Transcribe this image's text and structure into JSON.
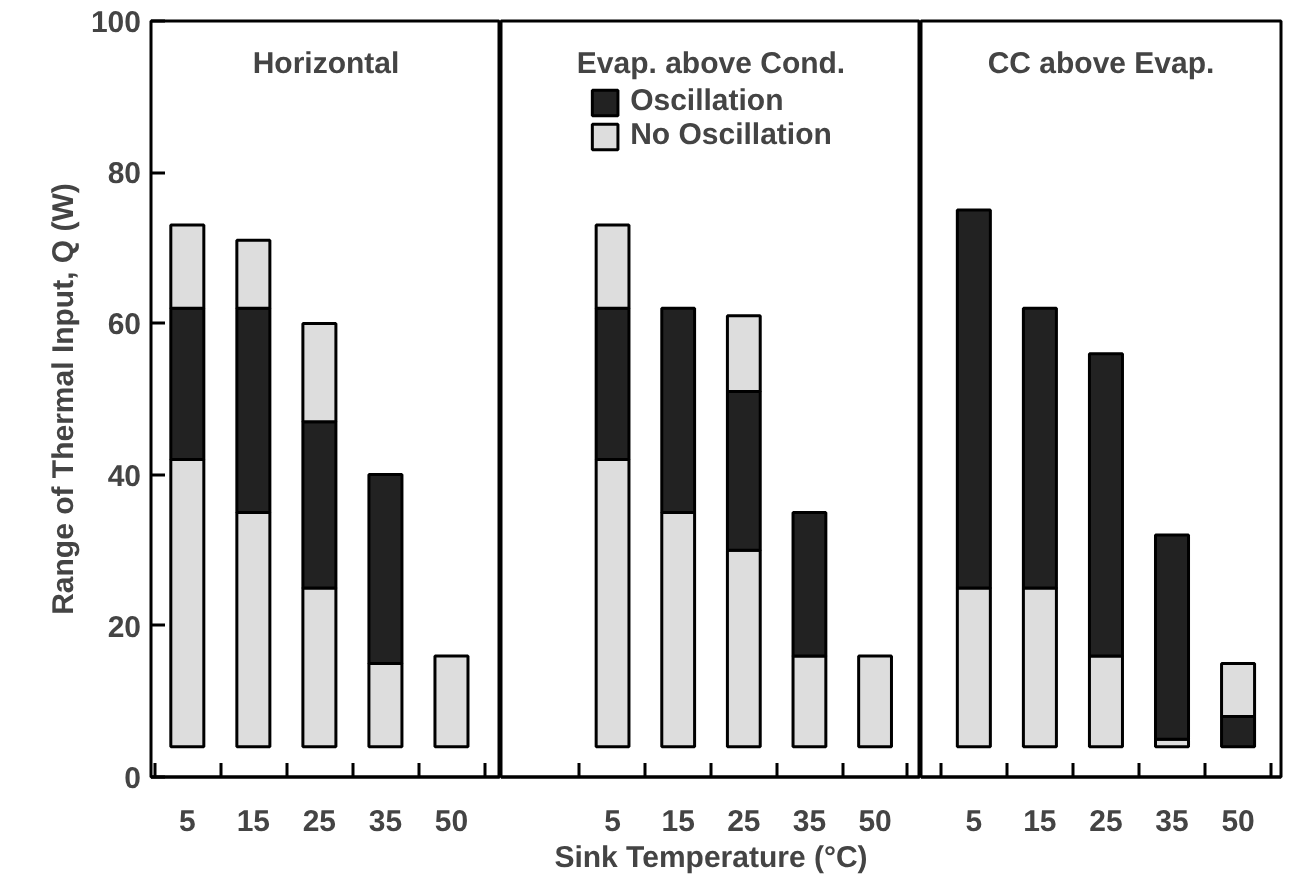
{
  "chart_data": [
    {
      "type": "bar",
      "title": "Horizontal",
      "ylabel": "Range of Thermal Input, Q (W)",
      "categories": [
        "5",
        "15",
        "25",
        "35",
        "50"
      ],
      "ylim": [
        0,
        100
      ],
      "yticks": [
        0,
        20,
        40,
        60,
        80,
        100
      ],
      "grid": false,
      "legend": false,
      "series": [
        {
          "color": "#dddddd",
          "base": [
            4,
            4,
            4,
            4,
            4
          ],
          "values": [
            38,
            31,
            21,
            11,
            12
          ]
        },
        {
          "color": "#222222",
          "base": [
            42,
            35,
            25,
            15,
            null
          ],
          "values": [
            20,
            27,
            22,
            25,
            null
          ]
        },
        {
          "color": "#dddddd",
          "base": [
            62,
            62,
            47,
            null,
            null
          ],
          "values": [
            11,
            9,
            13,
            null,
            null
          ]
        }
      ]
    },
    {
      "type": "bar",
      "title": "Evap. above Cond.",
      "xlabel": "Sink Temperature (°C)",
      "categories": [
        "5",
        "15",
        "25",
        "35",
        "50"
      ],
      "ylim": [
        0,
        100
      ],
      "yticks": [
        0,
        20,
        40,
        60,
        80,
        100
      ],
      "grid": false,
      "legend": "top",
      "tick_labels": "x",
      "series": [
        {
          "name": "No Oscillation",
          "color": "#dddddd",
          "base": [
            4,
            4,
            4,
            4,
            4
          ],
          "values": [
            38,
            31,
            26,
            12,
            12
          ]
        },
        {
          "name": "Oscillation",
          "color": "#222222",
          "base": [
            42,
            35,
            30,
            16,
            null
          ],
          "values": [
            20,
            27,
            21,
            19,
            null
          ]
        },
        {
          "color": "#dddddd",
          "base": [
            62,
            null,
            51,
            null,
            null
          ],
          "values": [
            11,
            null,
            10,
            null,
            null
          ]
        }
      ]
    },
    {
      "type": "bar",
      "title": "CC above Evap.",
      "categories": [
        "5",
        "15",
        "25",
        "35",
        "50"
      ],
      "ylim": [
        0,
        100
      ],
      "yticks": [
        0,
        20,
        40,
        60,
        80,
        100
      ],
      "grid": false,
      "legend": false,
      "tick_labels": "x",
      "series": [
        {
          "color": "#dddddd",
          "base": [
            4,
            4,
            4,
            4,
            null
          ],
          "values": [
            21,
            21,
            12,
            1,
            null
          ]
        },
        {
          "color": "#222222",
          "base": [
            25,
            25,
            16,
            5,
            4
          ],
          "values": [
            50,
            37,
            40,
            27,
            4
          ]
        },
        {
          "color": "#dddddd",
          "base": [
            null,
            null,
            null,
            null,
            8
          ],
          "values": [
            null,
            null,
            null,
            null,
            7
          ]
        }
      ]
    }
  ]
}
